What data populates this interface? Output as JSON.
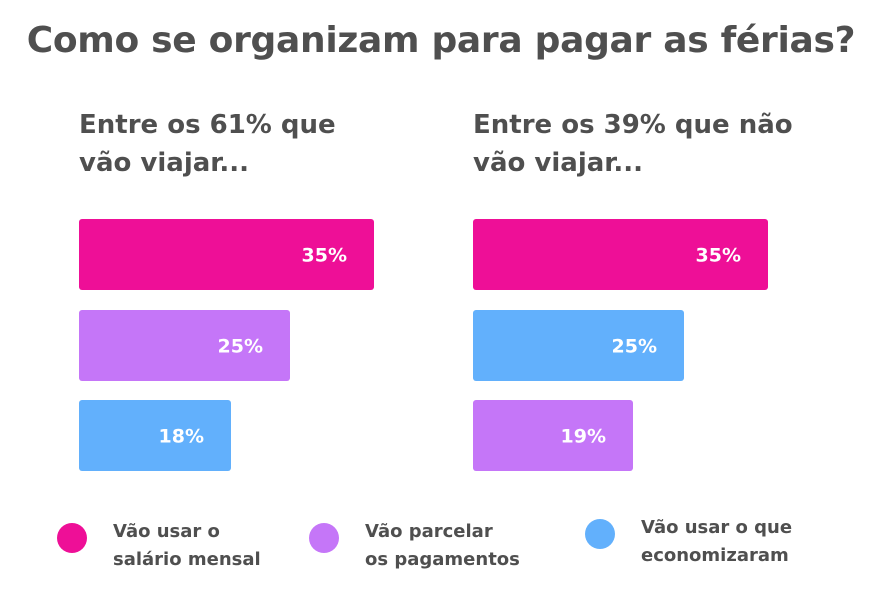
{
  "title": "Como se organizam para pagar as férias?",
  "colors": {
    "salario": "#ee0f97",
    "parcelar": "#c576f8",
    "economizar": "#62b0fc",
    "label": "#ffffff"
  },
  "legend": [
    {
      "label": "Vão usar o\nsalário mensal",
      "color": "#ee0f97"
    },
    {
      "label": "Vão parcelar\nos pagamentos",
      "color": "#c576f8"
    },
    {
      "label": "Vão usar o que\neconomizaram",
      "color": "#62b0fc"
    }
  ],
  "chart_data": [
    {
      "type": "bar",
      "orientation": "horizontal",
      "title": "Entre os 61% que\nvão viajar...",
      "categories": [
        "Vão usar o salário mensal",
        "Vão parcelar os pagamentos",
        "Vão usar o que economizaram"
      ],
      "values": [
        35,
        25,
        18
      ],
      "value_labels": [
        "35%",
        "25%",
        "18%"
      ],
      "colors": [
        "#ee0f97",
        "#c576f8",
        "#62b0fc"
      ],
      "xlim": [
        0,
        35
      ],
      "grid": false
    },
    {
      "type": "bar",
      "orientation": "horizontal",
      "title": "Entre os 39% que não\nvão viajar...",
      "categories": [
        "Vão usar o salário mensal",
        "Vão usar o que economizaram",
        "Vão parcelar os pagamentos"
      ],
      "values": [
        35,
        25,
        19
      ],
      "value_labels": [
        "35%",
        "25%",
        "19%"
      ],
      "colors": [
        "#ee0f97",
        "#62b0fc",
        "#c576f8"
      ],
      "xlim": [
        0,
        35
      ],
      "grid": false
    }
  ]
}
